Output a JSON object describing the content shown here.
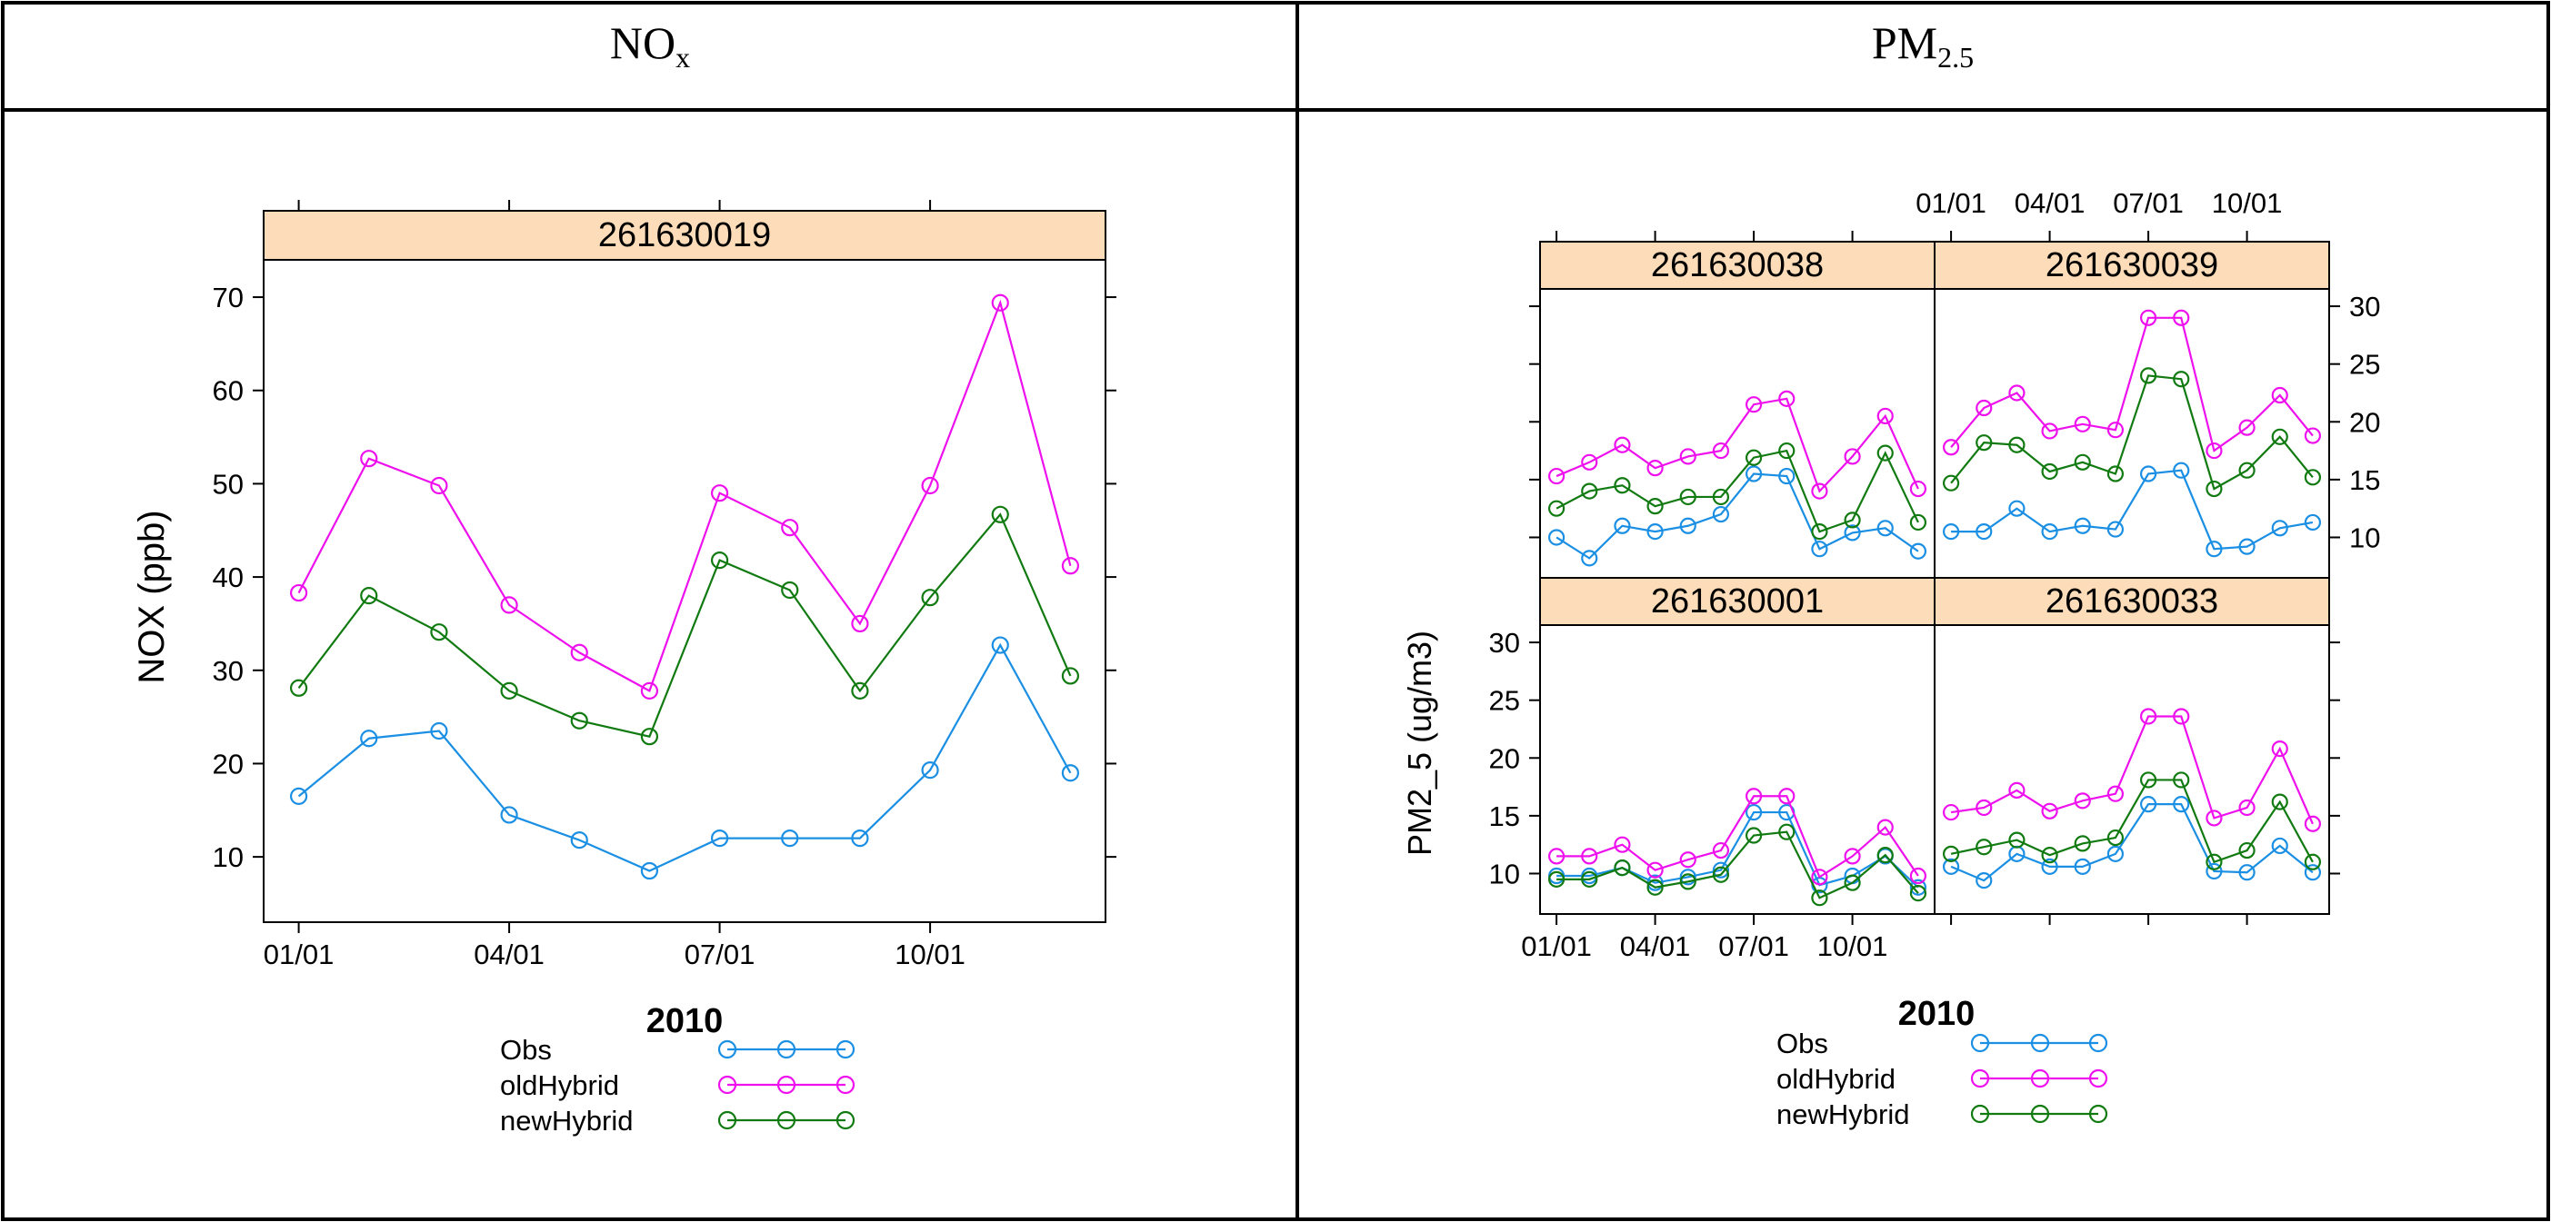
{
  "table": {
    "col1_header": "NO",
    "col1_sub": "x",
    "col2_header": "PM",
    "col2_sub": "2.5"
  },
  "colors": {
    "obs": "#1a8fe3",
    "oldHybrid": "#ee11ee",
    "newHybrid": "#117a11",
    "strip": "#fdddb9"
  },
  "chart_data": [
    {
      "type": "line",
      "panel": "261630019",
      "xlabel": "2010",
      "ylabel": "NOX (ppb)",
      "x": [
        1,
        2,
        3,
        4,
        5,
        6,
        7,
        8,
        9,
        10,
        11,
        12
      ],
      "xlim": [
        0.5,
        12.5
      ],
      "ylim": [
        3,
        74
      ],
      "x_ticks": [
        1,
        4,
        7,
        10
      ],
      "x_tick_labels": [
        "01/01",
        "04/01",
        "07/01",
        "10/01"
      ],
      "y_ticks": [
        10,
        20,
        30,
        40,
        50,
        60,
        70
      ],
      "y_tick_labels": [
        "10",
        "20",
        "30",
        "40",
        "50",
        "60",
        "70"
      ],
      "series": [
        {
          "name": "Obs",
          "key": "obs",
          "values": [
            16.5,
            22.7,
            23.5,
            14.5,
            11.8,
            8.5,
            12.0,
            12.0,
            12.0,
            19.3,
            32.7,
            19.0
          ]
        },
        {
          "name": "oldHybrid",
          "key": "oldHybrid",
          "values": [
            38.3,
            52.7,
            49.8,
            37.0,
            31.9,
            27.8,
            49.0,
            45.3,
            35.0,
            49.8,
            69.4,
            41.2
          ]
        },
        {
          "name": "newHybrid",
          "key": "newHybrid",
          "values": [
            28.1,
            38.0,
            34.1,
            27.8,
            24.6,
            22.9,
            41.8,
            38.6,
            27.8,
            37.8,
            46.7,
            29.4
          ]
        }
      ]
    },
    {
      "type": "line",
      "panels": [
        "261630038",
        "261630039",
        "261630001",
        "261630033"
      ],
      "xlabel": "2010",
      "ylabel": "PM2_5 (ug/m3)",
      "x": [
        1,
        2,
        3,
        4,
        5,
        6,
        7,
        8,
        9,
        10,
        11,
        12
      ],
      "xlim": [
        0.5,
        12.5
      ],
      "ylim": [
        6.5,
        31.5
      ],
      "x_ticks": [
        1,
        4,
        7,
        10
      ],
      "x_tick_labels": [
        "01/01",
        "04/01",
        "07/01",
        "10/01"
      ],
      "y_ticks": [
        10,
        15,
        20,
        25,
        30
      ],
      "y_tick_labels": [
        "10",
        "15",
        "20",
        "25",
        "30"
      ],
      "panel_data": {
        "261630038": [
          {
            "name": "Obs",
            "key": "obs",
            "values": [
              10.0,
              8.2,
              11.0,
              10.5,
              11.0,
              12.0,
              15.5,
              15.3,
              9.0,
              10.4,
              10.8,
              8.8
            ]
          },
          {
            "name": "oldHybrid",
            "key": "oldHybrid",
            "values": [
              15.3,
              16.5,
              18.0,
              16.0,
              17.0,
              17.5,
              21.5,
              22.0,
              14.0,
              17.0,
              20.5,
              14.2
            ]
          },
          {
            "name": "newHybrid",
            "key": "newHybrid",
            "values": [
              12.5,
              14.0,
              14.5,
              12.7,
              13.5,
              13.5,
              16.9,
              17.5,
              10.5,
              11.5,
              17.3,
              11.3
            ]
          }
        ],
        "261630039": [
          {
            "name": "Obs",
            "key": "obs",
            "values": [
              10.5,
              10.5,
              12.5,
              10.5,
              11.0,
              10.7,
              15.5,
              15.8,
              9.0,
              9.2,
              10.8,
              11.3
            ]
          },
          {
            "name": "oldHybrid",
            "key": "oldHybrid",
            "values": [
              17.8,
              21.2,
              22.5,
              19.2,
              19.8,
              19.3,
              29.0,
              29.0,
              17.5,
              19.5,
              22.3,
              18.8
            ]
          },
          {
            "name": "newHybrid",
            "key": "newHybrid",
            "values": [
              14.7,
              18.2,
              18.0,
              15.7,
              16.5,
              15.5,
              24.0,
              23.7,
              14.2,
              15.8,
              18.7,
              15.2
            ]
          }
        ],
        "261630001": [
          {
            "name": "Obs",
            "key": "obs",
            "values": [
              9.8,
              9.8,
              10.5,
              9.2,
              9.7,
              10.3,
              15.3,
              15.3,
              9.0,
              9.8,
              11.5,
              8.8
            ]
          },
          {
            "name": "oldHybrid",
            "key": "oldHybrid",
            "values": [
              11.5,
              11.5,
              12.5,
              10.3,
              11.2,
              12.0,
              16.7,
              16.7,
              9.7,
              11.5,
              14.0,
              9.8
            ]
          },
          {
            "name": "newHybrid",
            "key": "newHybrid",
            "values": [
              9.5,
              9.5,
              10.5,
              8.8,
              9.3,
              9.9,
              13.3,
              13.6,
              7.9,
              9.2,
              11.6,
              8.3
            ]
          }
        ],
        "261630033": [
          {
            "name": "Obs",
            "key": "obs",
            "values": [
              10.6,
              9.4,
              11.7,
              10.6,
              10.6,
              11.7,
              16.0,
              16.0,
              10.2,
              10.1,
              12.4,
              10.1
            ]
          },
          {
            "name": "oldHybrid",
            "key": "oldHybrid",
            "values": [
              15.3,
              15.7,
              17.2,
              15.4,
              16.3,
              16.9,
              23.6,
              23.6,
              14.8,
              15.7,
              20.8,
              14.3
            ]
          },
          {
            "name": "newHybrid",
            "key": "newHybrid",
            "values": [
              11.7,
              12.3,
              12.9,
              11.6,
              12.6,
              13.1,
              18.1,
              18.1,
              11.0,
              12.0,
              16.2,
              11.0
            ]
          }
        ]
      }
    }
  ],
  "legend": {
    "title": "2010",
    "items": [
      {
        "label": "Obs",
        "key": "obs"
      },
      {
        "label": "oldHybrid",
        "key": "oldHybrid"
      },
      {
        "label": "newHybrid",
        "key": "newHybrid"
      }
    ]
  }
}
